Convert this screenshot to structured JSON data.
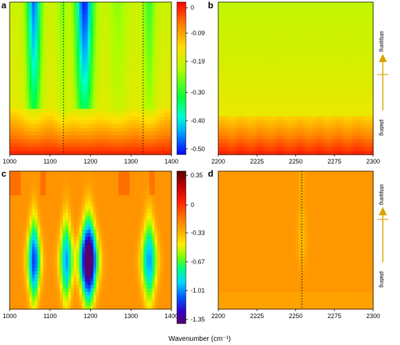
{
  "figure": {
    "xlabel": "Wavenumber (cm⁻¹)"
  },
  "chart_data": [
    {
      "panel": "a",
      "type": "heatmap",
      "panel_label": "a",
      "x_ticks": [
        1000,
        1100,
        1200,
        1300,
        1400
      ],
      "xlim": [
        1000,
        1400
      ],
      "bands": [
        {
          "center": 1060,
          "sigma": 12,
          "depth": 0.28
        },
        {
          "center": 1130,
          "sigma": 8,
          "depth": 0.06
        },
        {
          "center": 1185,
          "sigma": 15,
          "depth": 0.32
        },
        {
          "center": 1268,
          "sigma": 15,
          "depth": 0.05
        },
        {
          "center": 1345,
          "sigma": 10,
          "depth": 0.1
        }
      ],
      "dashed_lines": [
        1133,
        1330
      ],
      "colorbar": {
        "ticks": [
          "0",
          "-0.09",
          "-0.19",
          "-0.30",
          "-0.40",
          "-0.50"
        ],
        "tick_values": [
          0,
          -0.09,
          -0.19,
          -0.3,
          -0.4,
          -0.5
        ],
        "range": [
          -0.52,
          0.02
        ]
      }
    },
    {
      "panel": "b",
      "type": "heatmap",
      "panel_label": "b",
      "x_ticks": [
        2200,
        2225,
        2250,
        2275,
        2300
      ],
      "xlim": [
        2200,
        2300
      ],
      "side_labels": {
        "top": "stripping",
        "bottom": "plating"
      },
      "colorbar_ref": "a"
    },
    {
      "panel": "c",
      "type": "heatmap",
      "panel_label": "c",
      "x_ticks": [
        1000,
        1100,
        1200,
        1300,
        1400
      ],
      "xlim": [
        1000,
        1400
      ],
      "bands": [
        {
          "center": 1060,
          "sigma": 6,
          "depth": 0.9
        },
        {
          "center": 1140,
          "sigma": 6,
          "depth": 0.75
        },
        {
          "center": 1195,
          "sigma": 8,
          "depth": 1.35
        },
        {
          "center": 1345,
          "sigma": 7,
          "depth": 0.75
        }
      ],
      "colorbar": {
        "ticks": [
          "0.35",
          "0",
          "-0.33",
          "-0.67",
          "-1.01",
          "-1.35"
        ],
        "tick_values": [
          0.35,
          0,
          -0.33,
          -0.67,
          -1.01,
          -1.35
        ],
        "range": [
          -1.4,
          0.4
        ]
      }
    },
    {
      "panel": "d",
      "type": "heatmap",
      "panel_label": "d",
      "x_ticks": [
        2200,
        2225,
        2250,
        2275,
        2300
      ],
      "xlim": [
        2200,
        2300
      ],
      "dashed_lines": [
        2254
      ],
      "side_labels": {
        "top": "stripping",
        "bottom": "plating"
      },
      "colorbar_ref": "c"
    }
  ],
  "colors": {
    "arrow": "#d9a400",
    "axis": "#000000"
  }
}
